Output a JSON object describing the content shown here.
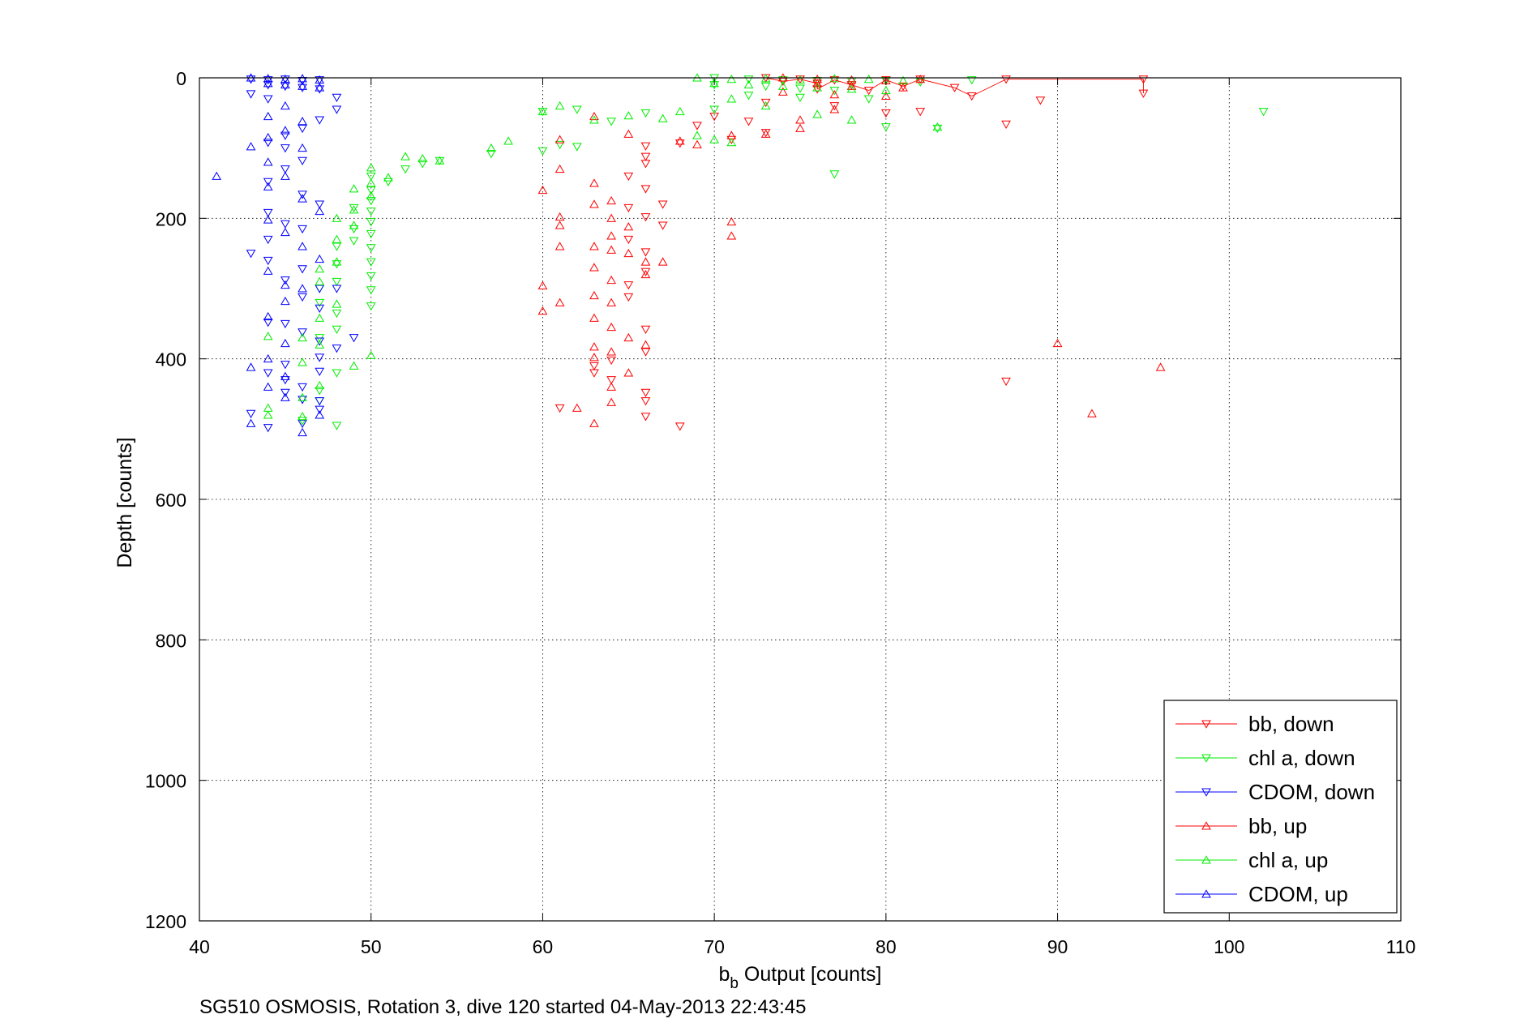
{
  "chart_data": {
    "type": "scatter",
    "title": "",
    "xlabel": {
      "base": "b",
      "sub": "b",
      "rest": " Output [counts]"
    },
    "ylabel": "Depth [counts]",
    "xlim": [
      40,
      110
    ],
    "ylim": [
      0,
      1200
    ],
    "y_reversed": true,
    "xticks": [
      40,
      50,
      60,
      70,
      80,
      90,
      100,
      110
    ],
    "yticks": [
      0,
      200,
      400,
      600,
      800,
      1000,
      1200
    ],
    "grid": true,
    "legend_position": "bottom-right",
    "footer": "SG510 OSMOSIS, Rotation 3, dive 120 started 04-May-2013 22:43:45",
    "series": [
      {
        "name": "bb, down",
        "color": "#ff0000",
        "marker": "triangle-down",
        "points": [
          [
            73,
            0
          ],
          [
            75,
            2
          ],
          [
            77,
            3
          ],
          [
            80,
            3
          ],
          [
            82,
            2
          ],
          [
            87,
            2
          ],
          [
            95,
            2
          ],
          [
            74,
            5
          ],
          [
            76,
            8
          ],
          [
            78,
            10
          ],
          [
            81,
            12
          ],
          [
            84,
            14
          ],
          [
            76,
            16
          ],
          [
            79,
            18
          ],
          [
            95,
            22
          ],
          [
            85,
            26
          ],
          [
            89,
            32
          ],
          [
            73,
            35
          ],
          [
            77,
            40
          ],
          [
            82,
            48
          ],
          [
            80,
            50
          ],
          [
            70,
            55
          ],
          [
            72,
            62
          ],
          [
            69,
            68
          ],
          [
            87,
            66
          ],
          [
            73,
            78
          ],
          [
            71,
            88
          ],
          [
            68,
            93
          ],
          [
            66,
            97
          ],
          [
            66,
            112
          ],
          [
            66,
            122
          ],
          [
            65,
            140
          ],
          [
            66,
            158
          ],
          [
            65,
            185
          ],
          [
            67,
            180
          ],
          [
            66,
            198
          ],
          [
            67,
            210
          ],
          [
            65,
            230
          ],
          [
            66,
            248
          ],
          [
            66,
            276
          ],
          [
            65,
            295
          ],
          [
            65,
            312
          ],
          [
            66,
            358
          ],
          [
            66,
            390
          ],
          [
            63,
            410
          ],
          [
            66,
            448
          ],
          [
            64,
            430
          ],
          [
            66,
            460
          ],
          [
            66,
            482
          ],
          [
            68,
            496
          ],
          [
            87,
            432
          ],
          [
            61,
            470
          ],
          [
            63,
            420
          ],
          [
            64,
            402
          ]
        ]
      },
      {
        "name": "chl a, down",
        "color": "#00ee00",
        "marker": "triangle-down",
        "points": [
          [
            70,
            0
          ],
          [
            72,
            2
          ],
          [
            74,
            3
          ],
          [
            76,
            4
          ],
          [
            78,
            5
          ],
          [
            80,
            4
          ],
          [
            82,
            6
          ],
          [
            85,
            3
          ],
          [
            70,
            10
          ],
          [
            73,
            12
          ],
          [
            75,
            15
          ],
          [
            77,
            18
          ],
          [
            72,
            25
          ],
          [
            75,
            28
          ],
          [
            79,
            30
          ],
          [
            102,
            48
          ],
          [
            83,
            72
          ],
          [
            80,
            70
          ],
          [
            77,
            137
          ],
          [
            70,
            45
          ],
          [
            66,
            50
          ],
          [
            64,
            62
          ],
          [
            62,
            45
          ],
          [
            60,
            48
          ],
          [
            61,
            95
          ],
          [
            62,
            98
          ],
          [
            60,
            104
          ],
          [
            57,
            108
          ],
          [
            54,
            118
          ],
          [
            53,
            122
          ],
          [
            52,
            130
          ],
          [
            51,
            148
          ],
          [
            50,
            140
          ],
          [
            50,
            160
          ],
          [
            50,
            175
          ],
          [
            50,
            190
          ],
          [
            50,
            205
          ],
          [
            50,
            222
          ],
          [
            50,
            242
          ],
          [
            50,
            262
          ],
          [
            50,
            282
          ],
          [
            50,
            302
          ],
          [
            50,
            325
          ],
          [
            49,
            185
          ],
          [
            49,
            215
          ],
          [
            49,
            232
          ],
          [
            48,
            240
          ],
          [
            48,
            265
          ],
          [
            48,
            290
          ],
          [
            47,
            300
          ],
          [
            47,
            320
          ],
          [
            48,
            335
          ],
          [
            48,
            358
          ],
          [
            47,
            370
          ],
          [
            48,
            420
          ],
          [
            47,
            445
          ],
          [
            47,
            460
          ],
          [
            48,
            495
          ],
          [
            46,
            488
          ]
        ]
      },
      {
        "name": "CDOM, down",
        "color": "#0000ff",
        "marker": "triangle-down",
        "points": [
          [
            43,
            2
          ],
          [
            44,
            3
          ],
          [
            45,
            2
          ],
          [
            46,
            4
          ],
          [
            47,
            3
          ],
          [
            44,
            10
          ],
          [
            45,
            12
          ],
          [
            46,
            14
          ],
          [
            47,
            16
          ],
          [
            48,
            28
          ],
          [
            48,
            45
          ],
          [
            47,
            60
          ],
          [
            46,
            72
          ],
          [
            45,
            82
          ],
          [
            44,
            92
          ],
          [
            45,
            100
          ],
          [
            46,
            118
          ],
          [
            45,
            130
          ],
          [
            44,
            148
          ],
          [
            46,
            166
          ],
          [
            47,
            180
          ],
          [
            44,
            192
          ],
          [
            45,
            208
          ],
          [
            46,
            215
          ],
          [
            44,
            230
          ],
          [
            43,
            250
          ],
          [
            44,
            260
          ],
          [
            45,
            288
          ],
          [
            46,
            272
          ],
          [
            47,
            300
          ],
          [
            46,
            312
          ],
          [
            47,
            328
          ],
          [
            44,
            348
          ],
          [
            45,
            350
          ],
          [
            46,
            362
          ],
          [
            47,
            375
          ],
          [
            47,
            398
          ],
          [
            45,
            408
          ],
          [
            44,
            420
          ],
          [
            45,
            448
          ],
          [
            46,
            458
          ],
          [
            47,
            472
          ],
          [
            46,
            492
          ],
          [
            44,
            498
          ],
          [
            43,
            478
          ],
          [
            48,
            300
          ],
          [
            49,
            370
          ],
          [
            48,
            385
          ],
          [
            47,
            418
          ],
          [
            45,
            430
          ],
          [
            46,
            440
          ],
          [
            47,
            460
          ],
          [
            43,
            23
          ],
          [
            44,
            30
          ]
        ]
      },
      {
        "name": "bb, up",
        "color": "#ff0000",
        "marker": "triangle-up",
        "points": [
          [
            74,
            0
          ],
          [
            76,
            2
          ],
          [
            78,
            3
          ],
          [
            80,
            4
          ],
          [
            82,
            2
          ],
          [
            76,
            8
          ],
          [
            78,
            12
          ],
          [
            81,
            14
          ],
          [
            74,
            20
          ],
          [
            77,
            24
          ],
          [
            80,
            26
          ],
          [
            71,
            82
          ],
          [
            73,
            80
          ],
          [
            75,
            72
          ],
          [
            69,
            95
          ],
          [
            68,
            90
          ],
          [
            65,
            80
          ],
          [
            63,
            55
          ],
          [
            61,
            88
          ],
          [
            60,
            160
          ],
          [
            61,
            130
          ],
          [
            63,
            150
          ],
          [
            63,
            180
          ],
          [
            64,
            175
          ],
          [
            64,
            200
          ],
          [
            65,
            212
          ],
          [
            64,
            225
          ],
          [
            63,
            240
          ],
          [
            64,
            245
          ],
          [
            65,
            250
          ],
          [
            66,
            262
          ],
          [
            67,
            262
          ],
          [
            63,
            270
          ],
          [
            64,
            288
          ],
          [
            66,
            280
          ],
          [
            63,
            310
          ],
          [
            64,
            320
          ],
          [
            63,
            342
          ],
          [
            64,
            355
          ],
          [
            65,
            370
          ],
          [
            63,
            383
          ],
          [
            64,
            390
          ],
          [
            66,
            380
          ],
          [
            63,
            398
          ],
          [
            65,
            420
          ],
          [
            64,
            440
          ],
          [
            62,
            470
          ],
          [
            64,
            462
          ],
          [
            63,
            492
          ],
          [
            61,
            198
          ],
          [
            61,
            210
          ],
          [
            61,
            240
          ],
          [
            60,
            296
          ],
          [
            61,
            320
          ],
          [
            60,
            332
          ],
          [
            71,
            205
          ],
          [
            71,
            225
          ],
          [
            90,
            378
          ],
          [
            96,
            412
          ],
          [
            92,
            478
          ],
          [
            77,
            45
          ],
          [
            75,
            60
          ]
        ]
      },
      {
        "name": "chl a, up",
        "color": "#00ee00",
        "marker": "triangle-up",
        "points": [
          [
            69,
            0
          ],
          [
            71,
            2
          ],
          [
            73,
            1
          ],
          [
            75,
            3
          ],
          [
            77,
            1
          ],
          [
            79,
            2
          ],
          [
            81,
            4
          ],
          [
            70,
            8
          ],
          [
            72,
            10
          ],
          [
            74,
            12
          ],
          [
            76,
            14
          ],
          [
            78,
            16
          ],
          [
            80,
            18
          ],
          [
            71,
            30
          ],
          [
            73,
            40
          ],
          [
            76,
            52
          ],
          [
            78,
            60
          ],
          [
            83,
            70
          ],
          [
            69,
            82
          ],
          [
            70,
            88
          ],
          [
            71,
            92
          ],
          [
            68,
            48
          ],
          [
            67,
            58
          ],
          [
            65,
            54
          ],
          [
            63,
            60
          ],
          [
            61,
            40
          ],
          [
            60,
            48
          ],
          [
            58,
            90
          ],
          [
            57,
            100
          ],
          [
            54,
            118
          ],
          [
            53,
            115
          ],
          [
            52,
            112
          ],
          [
            51,
            142
          ],
          [
            50,
            128
          ],
          [
            50,
            150
          ],
          [
            50,
            168
          ],
          [
            49,
            158
          ],
          [
            49,
            188
          ],
          [
            49,
            210
          ],
          [
            48,
            200
          ],
          [
            48,
            230
          ],
          [
            48,
            262
          ],
          [
            47,
            272
          ],
          [
            47,
            290
          ],
          [
            48,
            322
          ],
          [
            47,
            342
          ],
          [
            46,
            370
          ],
          [
            47,
            380
          ],
          [
            46,
            405
          ],
          [
            47,
            438
          ],
          [
            46,
            455
          ],
          [
            44,
            470
          ],
          [
            44,
            480
          ],
          [
            46,
            482
          ],
          [
            49,
            410
          ],
          [
            50,
            395
          ],
          [
            44,
            368
          ]
        ]
      },
      {
        "name": "CDOM, up",
        "color": "#0000ff",
        "marker": "triangle-up",
        "points": [
          [
            43,
            0
          ],
          [
            44,
            1
          ],
          [
            45,
            2
          ],
          [
            46,
            1
          ],
          [
            47,
            3
          ],
          [
            44,
            8
          ],
          [
            45,
            10
          ],
          [
            46,
            12
          ],
          [
            47,
            14
          ],
          [
            45,
            40
          ],
          [
            44,
            55
          ],
          [
            46,
            62
          ],
          [
            45,
            75
          ],
          [
            44,
            85
          ],
          [
            43,
            98
          ],
          [
            46,
            100
          ],
          [
            44,
            120
          ],
          [
            45,
            140
          ],
          [
            44,
            155
          ],
          [
            41,
            140
          ],
          [
            46,
            172
          ],
          [
            47,
            190
          ],
          [
            44,
            202
          ],
          [
            45,
            220
          ],
          [
            46,
            240
          ],
          [
            47,
            258
          ],
          [
            44,
            275
          ],
          [
            45,
            295
          ],
          [
            46,
            300
          ],
          [
            44,
            340
          ],
          [
            45,
            378
          ],
          [
            44,
            400
          ],
          [
            43,
            412
          ],
          [
            45,
            425
          ],
          [
            44,
            440
          ],
          [
            45,
            455
          ],
          [
            43,
            492
          ],
          [
            46,
            505
          ],
          [
            47,
            480
          ],
          [
            45,
            318
          ]
        ]
      }
    ]
  }
}
